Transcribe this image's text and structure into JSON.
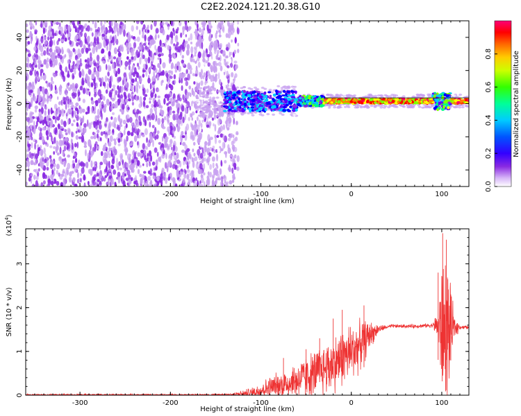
{
  "title": "C2E2.2024.121.20.38.G10",
  "chart_data": [
    {
      "type": "heatmap",
      "xlabel": "Height of straight line (km)",
      "ylabel": "Frequency (Hz)",
      "xlim": [
        -360,
        130
      ],
      "ylim": [
        -50,
        50
      ],
      "x_ticks": [
        -300,
        -200,
        -100,
        0,
        100
      ],
      "y_ticks": [
        -40,
        -20,
        0,
        20,
        40
      ],
      "colorbar": {
        "label": "Normalized spectral amplitude",
        "range": [
          0,
          1
        ],
        "ticks": [
          0.0,
          0.2,
          0.4,
          0.6,
          0.8
        ],
        "colors": [
          "#ffffff",
          "#c8a0f0",
          "#8a2be2",
          "#5a00ff",
          "#0000ff",
          "#00c8ff",
          "#00ff80",
          "#80ff00",
          "#ffff00",
          "#ff8000",
          "#ff0000",
          "#ff0066"
        ]
      },
      "features": {
        "noise_region_x": [
          -360,
          -135
        ],
        "signal_line_x": [
          -140,
          130
        ],
        "signal_freq_hz": 1.5,
        "signal_strong_x": [
          -30,
          130
        ]
      }
    },
    {
      "type": "line",
      "xlabel": "Height of straight line (km)",
      "ylabel": "SNR (10 * v/v)",
      "scale_label": "(x10",
      "scale_exp": "4",
      "scale_close": ")",
      "xlim": [
        -360,
        130
      ],
      "ylim": [
        0,
        3.8
      ],
      "x_ticks": [
        -300,
        -200,
        -100,
        0,
        100
      ],
      "y_ticks": [
        0,
        1,
        2,
        3
      ],
      "color": "#ee3333",
      "profile": [
        [
          -360,
          0.01
        ],
        [
          -160,
          0.01
        ],
        [
          -130,
          0.02
        ],
        [
          -110,
          0.06
        ],
        [
          -90,
          0.2
        ],
        [
          -70,
          0.3
        ],
        [
          -50,
          0.45
        ],
        [
          -30,
          0.65
        ],
        [
          -10,
          0.9
        ],
        [
          0,
          1.05
        ],
        [
          10,
          1.2
        ],
        [
          20,
          1.4
        ],
        [
          30,
          1.52
        ],
        [
          45,
          1.58
        ],
        [
          70,
          1.58
        ],
        [
          90,
          1.6
        ],
        [
          98,
          1.62
        ],
        [
          102,
          1.62
        ],
        [
          107,
          1.6
        ],
        [
          112,
          1.58
        ],
        [
          120,
          1.56
        ],
        [
          130,
          1.55
        ]
      ],
      "noise": [
        [
          -360,
          0.02
        ],
        [
          -140,
          0.02
        ],
        [
          -120,
          0.08
        ],
        [
          -90,
          0.25
        ],
        [
          -60,
          0.45
        ],
        [
          -30,
          0.6
        ],
        [
          0,
          0.7
        ],
        [
          15,
          0.45
        ],
        [
          30,
          0.1
        ],
        [
          40,
          0.04
        ],
        [
          90,
          0.05
        ],
        [
          96,
          0.4
        ],
        [
          100,
          1.5
        ],
        [
          104,
          2.0
        ],
        [
          108,
          1.2
        ],
        [
          114,
          0.3
        ],
        [
          120,
          0.05
        ],
        [
          130,
          0.04
        ]
      ],
      "peaks": [
        [
          -75,
          0.85
        ],
        [
          -50,
          1.05
        ],
        [
          -35,
          1.3
        ],
        [
          -20,
          1.75
        ],
        [
          -10,
          1.95
        ],
        [
          14,
          2.05
        ],
        [
          96,
          2.8
        ],
        [
          101,
          3.7
        ],
        [
          105,
          3.55
        ],
        [
          110,
          2.3
        ]
      ]
    }
  ]
}
